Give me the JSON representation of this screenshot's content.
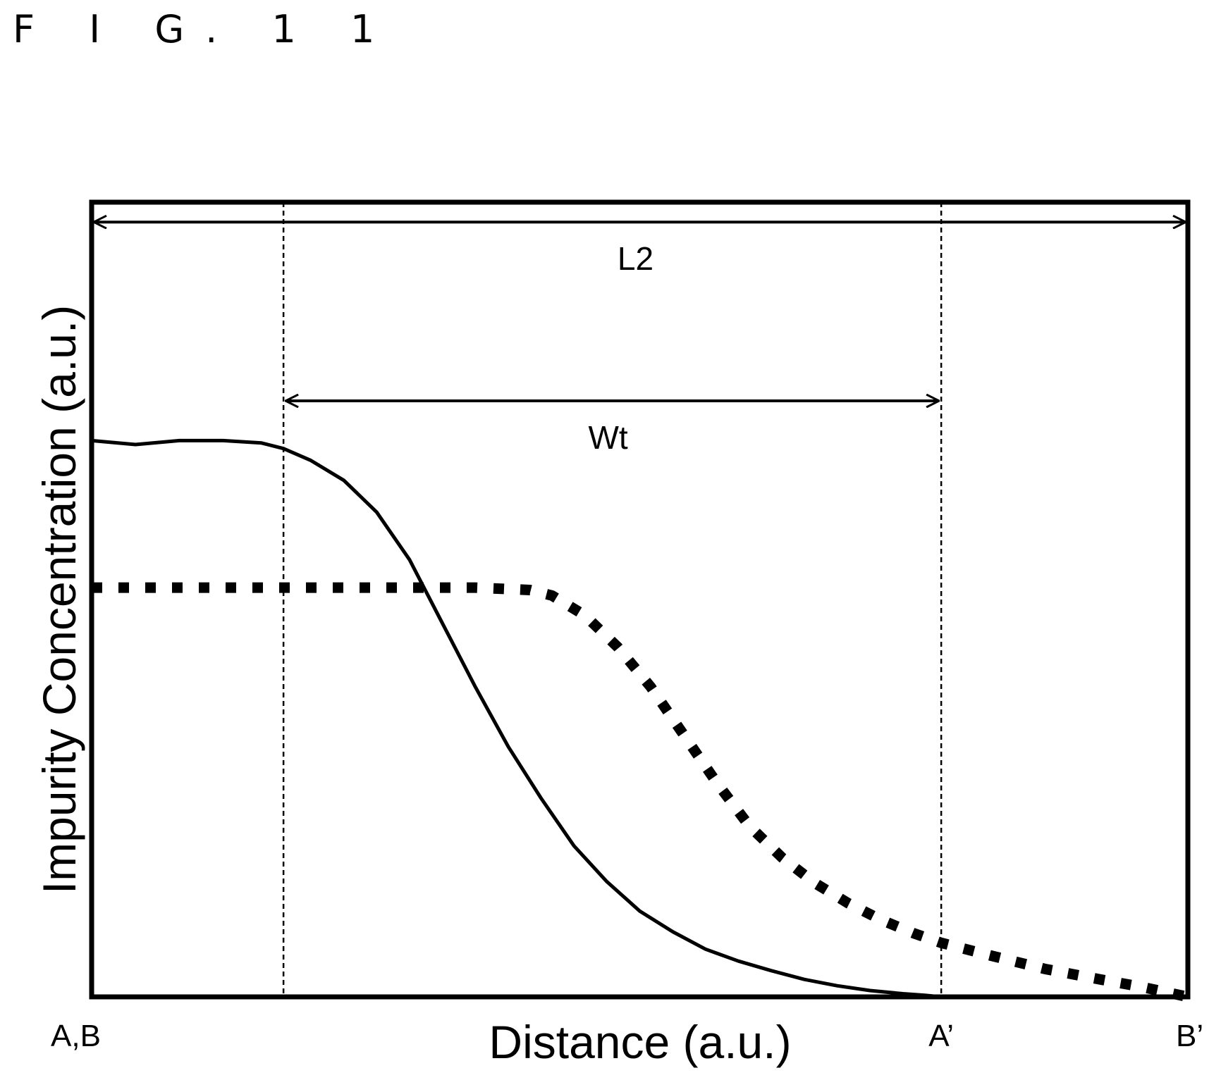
{
  "figure_label": "F I G. 1 1",
  "chart_data": {
    "type": "line",
    "title": "",
    "xlabel": "Distance (a.u.)",
    "ylabel": "Impurity Concentration (a.u.)",
    "xlim": [
      0,
      1
    ],
    "ylim": [
      0,
      1
    ],
    "grid": false,
    "x_tick_labels": [
      {
        "x": 0.0,
        "label": "A,B"
      },
      {
        "x": 0.775,
        "label": "A’"
      },
      {
        "x": 1.0,
        "label": "B’"
      }
    ],
    "reference_lines": [
      0.175,
      0.775
    ],
    "dimension_arrows": [
      {
        "label": "L2",
        "x_start": 0.0,
        "x_end": 1.0,
        "level": 0.975
      },
      {
        "label": "Wt",
        "x_start": 0.175,
        "x_end": 0.775,
        "level": 0.75
      }
    ],
    "series": [
      {
        "style": "solid",
        "x": [
          0.0,
          0.04,
          0.08,
          0.12,
          0.155,
          0.175,
          0.2,
          0.23,
          0.26,
          0.29,
          0.32,
          0.35,
          0.38,
          0.41,
          0.44,
          0.47,
          0.5,
          0.53,
          0.56,
          0.59,
          0.62,
          0.65,
          0.68,
          0.71,
          0.74,
          0.76,
          0.775
        ],
        "y": [
          0.7,
          0.695,
          0.7,
          0.7,
          0.697,
          0.69,
          0.675,
          0.65,
          0.61,
          0.55,
          0.47,
          0.39,
          0.315,
          0.25,
          0.19,
          0.145,
          0.108,
          0.082,
          0.06,
          0.045,
          0.033,
          0.022,
          0.014,
          0.008,
          0.004,
          0.002,
          0.0
        ]
      },
      {
        "style": "dotted",
        "x": [
          0.0,
          0.05,
          0.1,
          0.15,
          0.2,
          0.25,
          0.3,
          0.35,
          0.4,
          0.42,
          0.45,
          0.48,
          0.51,
          0.54,
          0.57,
          0.6,
          0.63,
          0.66,
          0.69,
          0.72,
          0.75,
          0.775,
          0.82,
          0.87,
          0.92,
          0.96,
          1.0
        ],
        "y": [
          0.515,
          0.515,
          0.515,
          0.515,
          0.515,
          0.515,
          0.515,
          0.515,
          0.512,
          0.505,
          0.48,
          0.44,
          0.39,
          0.33,
          0.27,
          0.215,
          0.175,
          0.143,
          0.118,
          0.097,
          0.08,
          0.068,
          0.052,
          0.035,
          0.022,
          0.012,
          0.0
        ]
      }
    ]
  }
}
